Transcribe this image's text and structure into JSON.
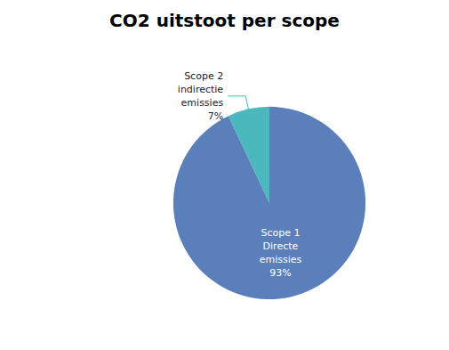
{
  "chart_data": {
    "type": "pie",
    "title": "CO2 uitstoot per scope",
    "categories": [
      "Scope 1\nDirecte\nemissies",
      "Scope 2\nindirectie\nemissies"
    ],
    "values": [
      93,
      7
    ],
    "value_labels": [
      "93%",
      "7%"
    ],
    "colors": [
      "#5b7fbb",
      "#4ab8bc"
    ],
    "data_labels": true,
    "legend": false
  }
}
